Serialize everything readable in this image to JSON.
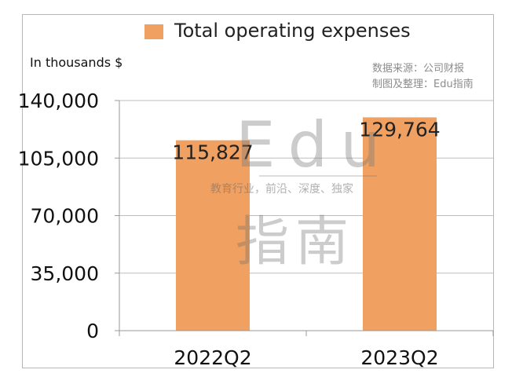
{
  "legend": {
    "label": "Total operating expenses",
    "color": "#f0a060"
  },
  "unit_label": "In thousands $",
  "source": {
    "line1": "数据来源：公司财报",
    "line2": "制图及整理：Edu指南"
  },
  "watermark": {
    "brand": "Edu",
    "tagline": "教育行业，前沿、深度、独家",
    "cn": "指南"
  },
  "chart_data": {
    "type": "bar",
    "categories": [
      "2022Q2",
      "2023Q2"
    ],
    "series": [
      {
        "name": "Total operating expenses",
        "values": [
          115827,
          129764
        ],
        "labels": [
          "115,827",
          "129,764"
        ]
      }
    ],
    "ylabel": "In thousands $",
    "ylim": [
      0,
      140000
    ],
    "yticks": [
      0,
      35000,
      70000,
      105000,
      140000
    ],
    "ytick_labels": [
      "0",
      "35,000",
      "70,000",
      "105,000",
      "140,000"
    ],
    "grid": true,
    "legend_position": "top",
    "bar_color": "#f0a060"
  }
}
